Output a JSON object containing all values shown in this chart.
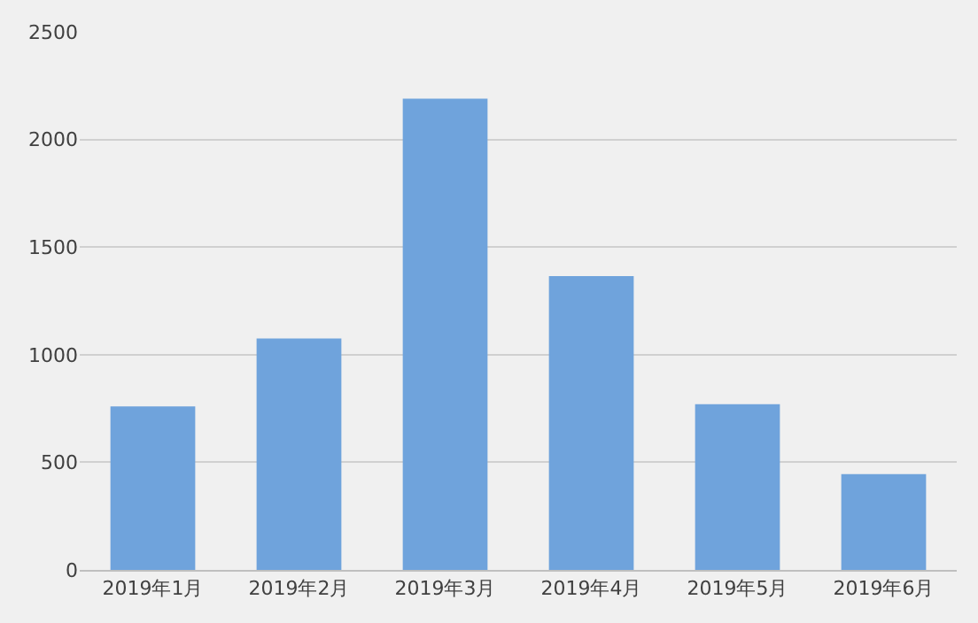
{
  "chart_data": {
    "type": "bar",
    "categories": [
      "2019年1月",
      "2019年2月",
      "2019年3月",
      "2019年4月",
      "2019年5月",
      "2019年6月"
    ],
    "values": [
      760,
      1075,
      2190,
      1365,
      770,
      445
    ],
    "color": "#6fa3dc",
    "ylim": [
      0,
      2500
    ],
    "yticks": [
      0,
      500,
      1000,
      1500,
      2000,
      2500
    ],
    "grid": "y"
  }
}
